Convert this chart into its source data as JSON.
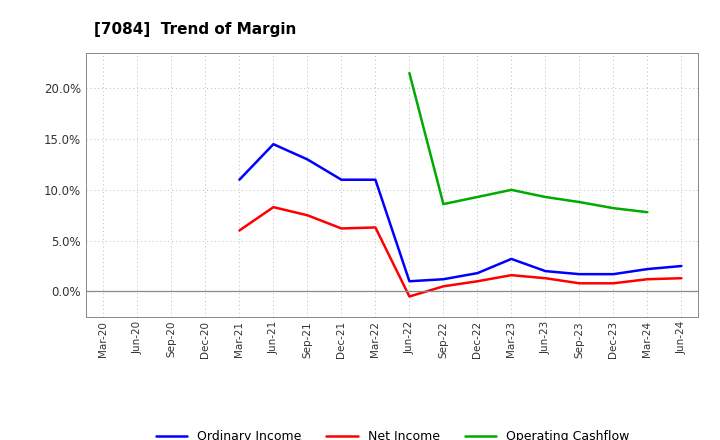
{
  "title": "[7084]  Trend of Margin",
  "x_labels": [
    "Mar-20",
    "Jun-20",
    "Sep-20",
    "Dec-20",
    "Mar-21",
    "Jun-21",
    "Sep-21",
    "Dec-21",
    "Mar-22",
    "Jun-22",
    "Sep-22",
    "Dec-22",
    "Mar-23",
    "Jun-23",
    "Sep-23",
    "Dec-23",
    "Mar-24",
    "Jun-24"
  ],
  "ordinary_income": [
    null,
    null,
    null,
    null,
    0.11,
    0.145,
    0.13,
    0.11,
    0.11,
    0.01,
    0.012,
    0.018,
    0.032,
    0.02,
    0.017,
    0.017,
    0.022,
    0.025
  ],
  "net_income": [
    null,
    null,
    null,
    null,
    0.06,
    0.083,
    0.075,
    0.062,
    0.063,
    -0.005,
    0.005,
    0.01,
    0.016,
    0.013,
    0.008,
    0.008,
    0.012,
    0.013
  ],
  "operating_cashflow": [
    null,
    null,
    null,
    null,
    null,
    null,
    null,
    null,
    null,
    0.215,
    0.086,
    0.093,
    0.1,
    0.093,
    0.088,
    0.082,
    0.078,
    null
  ],
  "ylim": [
    -0.025,
    0.235
  ],
  "yticks": [
    0.0,
    0.05,
    0.1,
    0.15,
    0.2
  ],
  "color_ordinary": "#0000ff",
  "color_net": "#ff0000",
  "color_cashflow": "#00aa00",
  "background_color": "#ffffff",
  "grid_color": "#bbbbbb",
  "legend_labels": [
    "Ordinary Income",
    "Net Income",
    "Operating Cashflow"
  ]
}
